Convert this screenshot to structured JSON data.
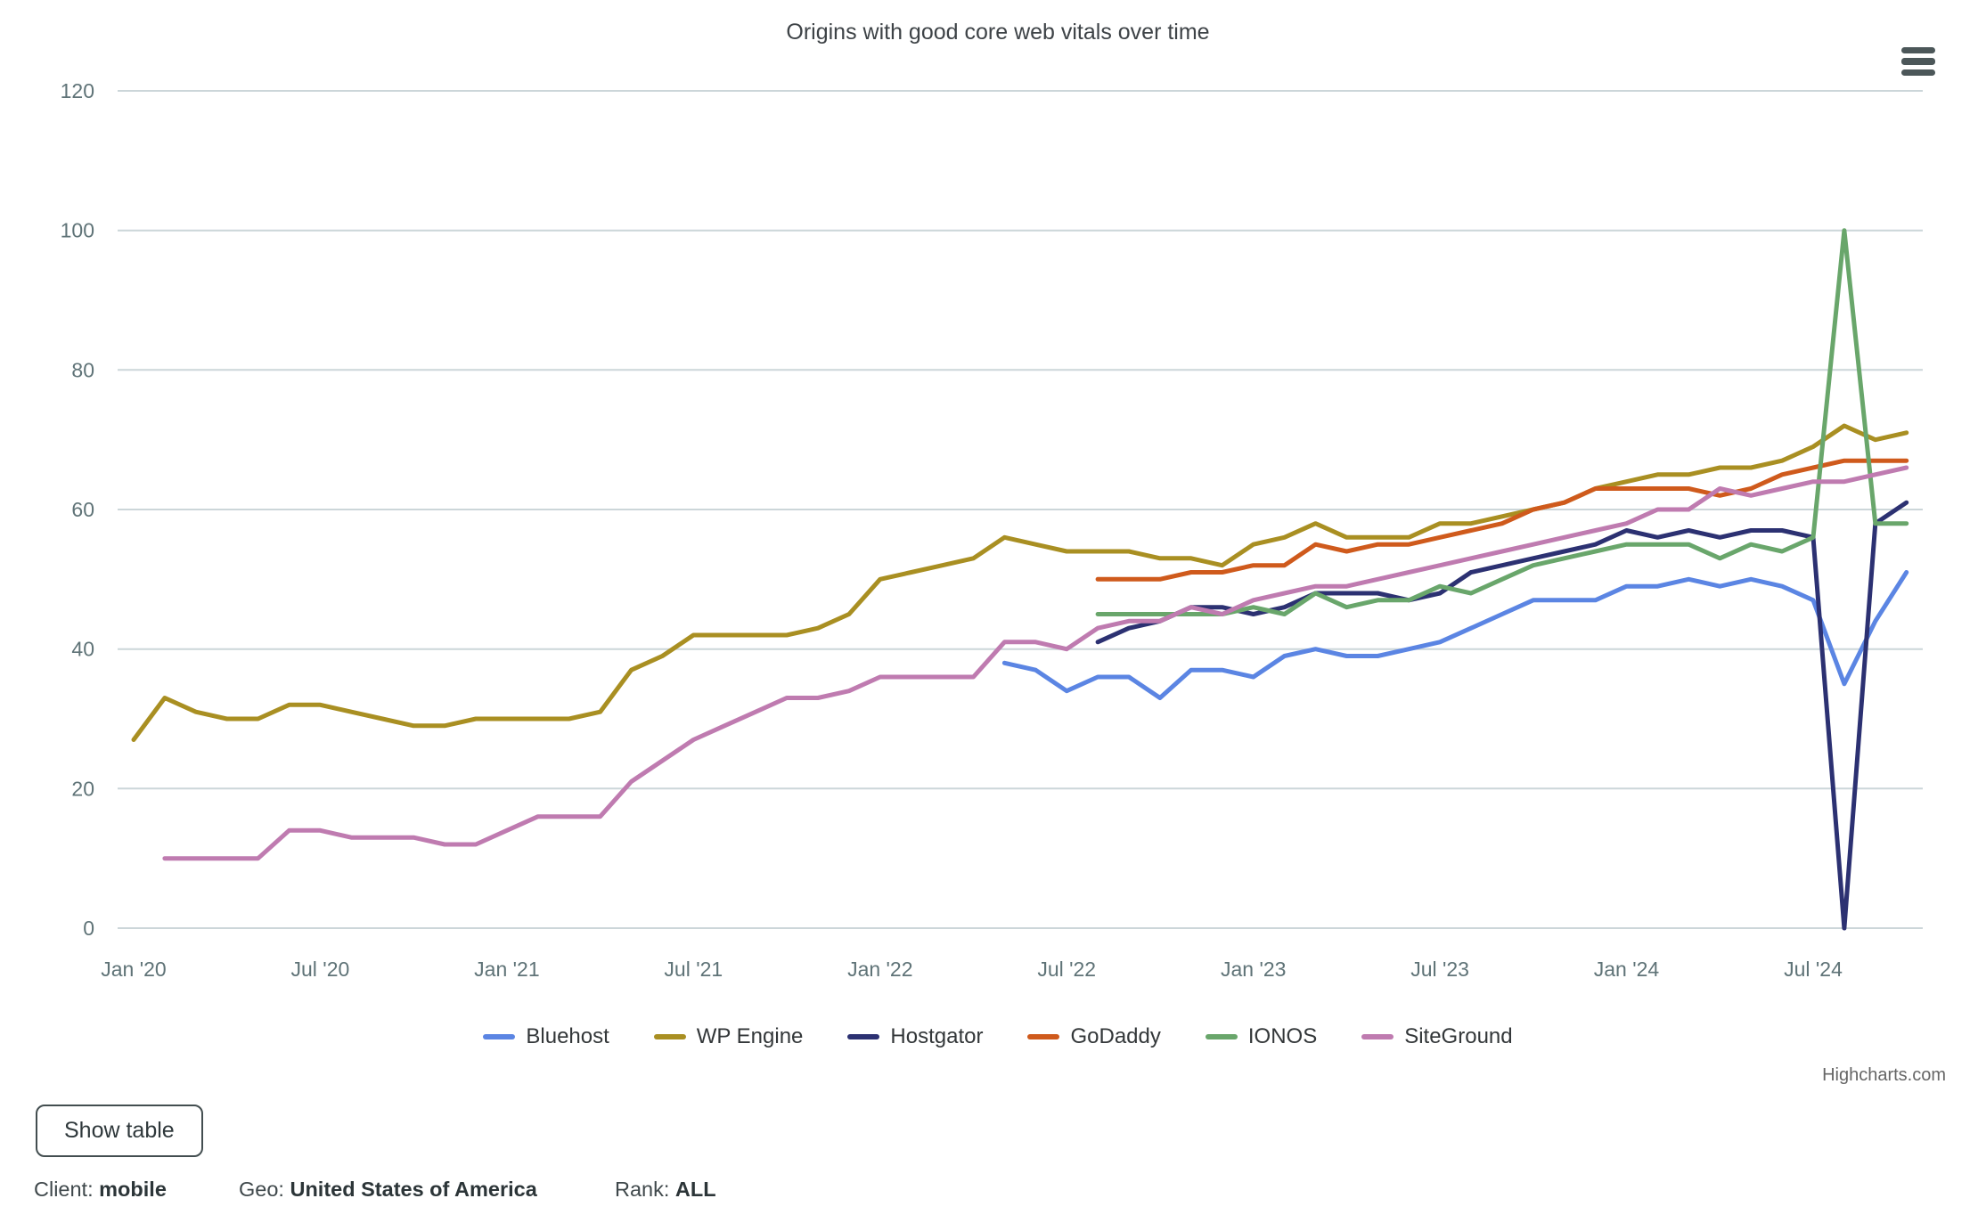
{
  "chart": {
    "title": "Origins with good core web vitals over time",
    "credits_label": "Highcharts.com"
  },
  "chart_data": {
    "type": "line",
    "title": "Origins with good core web vitals over time",
    "x_unit": "month",
    "x_range": [
      "2020-01",
      "2024-10"
    ],
    "x_tick_labels": [
      "Jan '20",
      "Jul '20",
      "Jan '21",
      "Jul '21",
      "Jan '22",
      "Jul '22",
      "Jan '23",
      "Jul '23",
      "Jan '24",
      "Jul '24"
    ],
    "x_tick_month_indices": [
      0,
      6,
      12,
      18,
      24,
      30,
      36,
      42,
      48,
      54
    ],
    "y_ticks": [
      0,
      20,
      40,
      60,
      80,
      100,
      120
    ],
    "ylim": [
      0,
      120
    ],
    "grid": "horizontal",
    "legend_position": "bottom",
    "grid_color": "#ccd6d9",
    "axis_label_color": "#5f7377",
    "series": [
      {
        "name": "Bluehost",
        "color": "#5b85e3",
        "start_month_index": 28,
        "start_month": "2022-05",
        "values": [
          38,
          37,
          34,
          36,
          36,
          33,
          37,
          37,
          36,
          39,
          40,
          39,
          39,
          40,
          41,
          43,
          45,
          47,
          47,
          47,
          49,
          49,
          50,
          49,
          50,
          49,
          47,
          35,
          44,
          51
        ]
      },
      {
        "name": "WP Engine",
        "color": "#a98f22",
        "start_month_index": 0,
        "start_month": "2020-01",
        "values": [
          27,
          33,
          31,
          30,
          30,
          32,
          32,
          31,
          30,
          29,
          29,
          30,
          30,
          30,
          30,
          31,
          37,
          39,
          42,
          42,
          42,
          42,
          43,
          45,
          50,
          51,
          52,
          53,
          56,
          55,
          54,
          54,
          54,
          53,
          53,
          52,
          55,
          56,
          58,
          56,
          56,
          56,
          58,
          58,
          59,
          60,
          61,
          63,
          64,
          65,
          65,
          66,
          66,
          67,
          69,
          72,
          70,
          71
        ]
      },
      {
        "name": "Hostgator",
        "color": "#2c3172",
        "start_month_index": 31,
        "start_month": "2022-08",
        "values": [
          41,
          43,
          44,
          46,
          46,
          45,
          46,
          48,
          48,
          48,
          47,
          48,
          51,
          52,
          53,
          54,
          55,
          57,
          56,
          57,
          56,
          57,
          57,
          56,
          0,
          58,
          61
        ]
      },
      {
        "name": "GoDaddy",
        "color": "#cf5a1c",
        "start_month_index": 31,
        "start_month": "2022-08",
        "values": [
          50,
          50,
          50,
          51,
          51,
          52,
          52,
          55,
          54,
          55,
          55,
          56,
          57,
          58,
          60,
          61,
          63,
          63,
          63,
          63,
          62,
          63,
          65,
          66,
          67,
          67,
          67
        ]
      },
      {
        "name": "IONOS",
        "color": "#69a66b",
        "start_month_index": 31,
        "start_month": "2022-08",
        "values": [
          45,
          45,
          45,
          45,
          45,
          46,
          45,
          48,
          46,
          47,
          47,
          49,
          48,
          50,
          52,
          53,
          54,
          55,
          55,
          55,
          53,
          55,
          54,
          56,
          100,
          58,
          58
        ]
      },
      {
        "name": "SiteGround",
        "color": "#bf7bb0",
        "start_month_index": 1,
        "start_month": "2020-02",
        "values": [
          10,
          10,
          10,
          10,
          14,
          14,
          13,
          13,
          13,
          12,
          12,
          14,
          16,
          16,
          16,
          21,
          24,
          27,
          29,
          31,
          33,
          33,
          34,
          36,
          36,
          36,
          36,
          41,
          41,
          40,
          43,
          44,
          44,
          46,
          45,
          47,
          48,
          49,
          49,
          50,
          51,
          52,
          53,
          54,
          55,
          56,
          57,
          58,
          60,
          60,
          63,
          62,
          63,
          64,
          64,
          65,
          66
        ]
      }
    ]
  },
  "controls": {
    "show_table_label": "Show table",
    "menu_icon": "hamburger-menu-icon"
  },
  "filters": {
    "client_label": "Client:",
    "client_value": "mobile",
    "geo_label": "Geo:",
    "geo_value": "United States of America",
    "rank_label": "Rank:",
    "rank_value": "ALL"
  }
}
